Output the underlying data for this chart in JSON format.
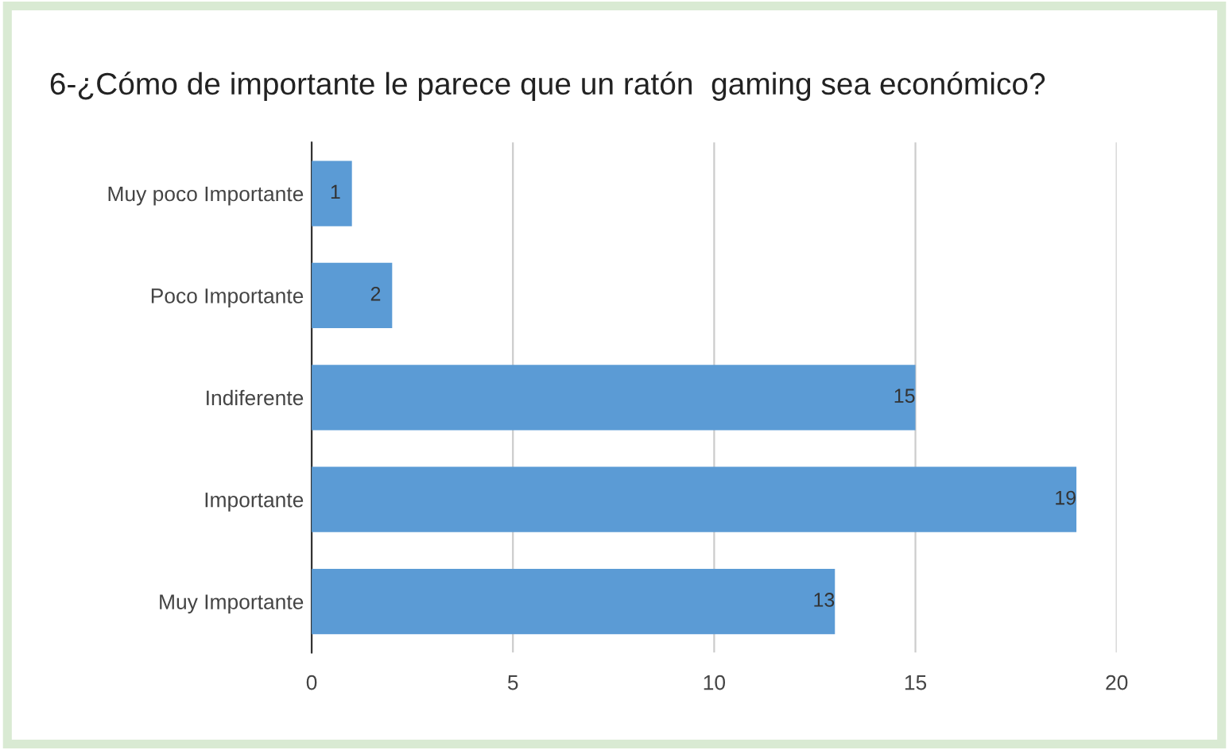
{
  "chart_data": {
    "type": "bar",
    "orientation": "horizontal",
    "title": "6-¿Cómo de importante le parece que un ratón  gaming sea económico?",
    "categories": [
      "Muy poco Importante",
      "Poco Importante",
      "Indiferente",
      "Importante",
      "Muy Importante"
    ],
    "values": [
      1,
      2,
      15,
      19,
      13
    ],
    "color": "#5b9bd5",
    "xlim": [
      0,
      20
    ],
    "xticks": [
      0,
      5,
      10,
      15,
      20
    ],
    "grid": "x",
    "data_labels": true,
    "legend": false
  }
}
